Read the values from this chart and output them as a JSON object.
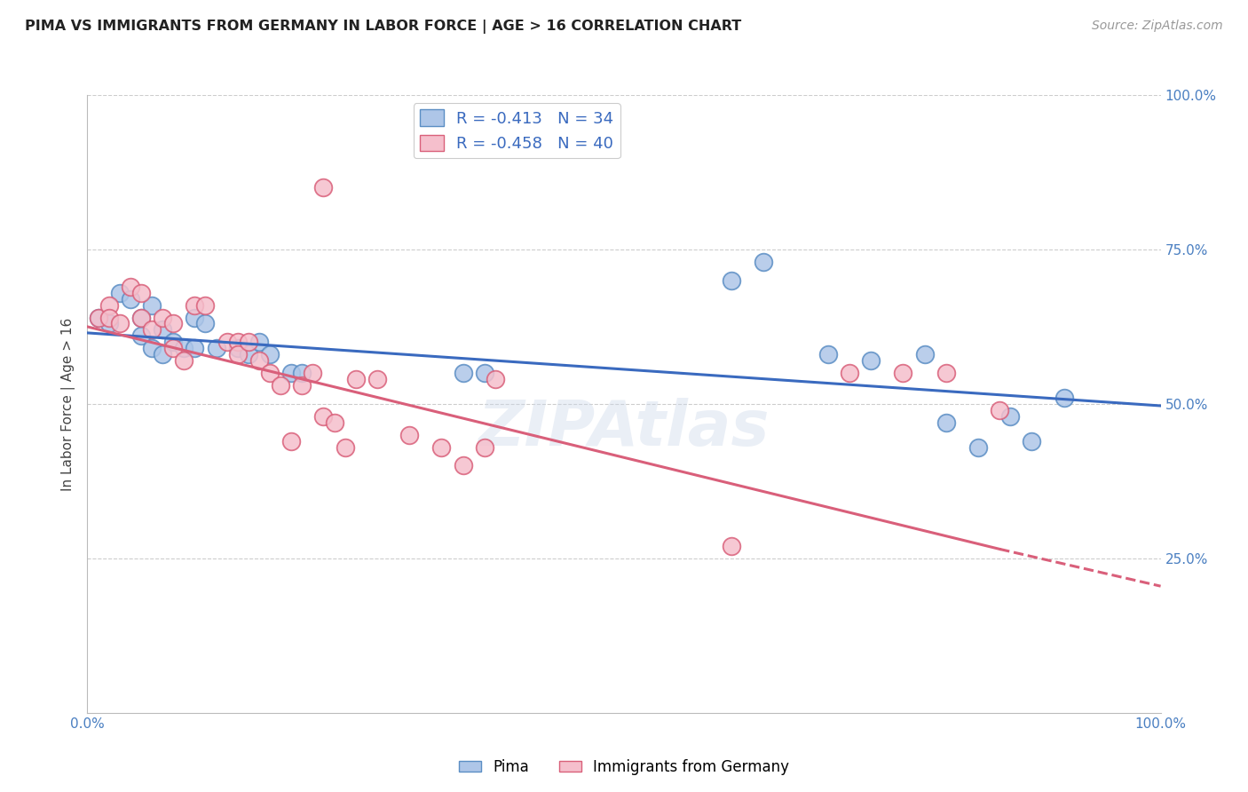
{
  "title": "PIMA VS IMMIGRANTS FROM GERMANY IN LABOR FORCE | AGE > 16 CORRELATION CHART",
  "source": "Source: ZipAtlas.com",
  "ylabel": "In Labor Force | Age > 16",
  "xlim": [
    0.0,
    1.0
  ],
  "ylim": [
    0.0,
    1.0
  ],
  "ytick_positions": [
    0.25,
    0.5,
    0.75,
    1.0
  ],
  "ytick_labels": [
    "25.0%",
    "50.0%",
    "75.0%",
    "100.0%"
  ],
  "legend_blue_r": "-0.413",
  "legend_blue_n": "34",
  "legend_pink_r": "-0.458",
  "legend_pink_n": "40",
  "pima_color": "#aec6e8",
  "germany_color": "#f5bfcc",
  "pima_edge_color": "#5b8ec4",
  "germany_edge_color": "#d9607a",
  "trendline_blue": "#3a6abf",
  "trendline_pink": "#d95f7a",
  "background_color": "#ffffff",
  "grid_color": "#c8c8c8",
  "pima_x": [
    0.01,
    0.02,
    0.03,
    0.04,
    0.05,
    0.05,
    0.06,
    0.06,
    0.07,
    0.07,
    0.08,
    0.09,
    0.1,
    0.1,
    0.11,
    0.12,
    0.14,
    0.15,
    0.16,
    0.17,
    0.19,
    0.2,
    0.35,
    0.37,
    0.6,
    0.63,
    0.69,
    0.73,
    0.78,
    0.8,
    0.83,
    0.86,
    0.88,
    0.91
  ],
  "pima_y": [
    0.64,
    0.63,
    0.68,
    0.67,
    0.64,
    0.61,
    0.66,
    0.59,
    0.62,
    0.58,
    0.6,
    0.59,
    0.64,
    0.59,
    0.63,
    0.59,
    0.59,
    0.58,
    0.6,
    0.58,
    0.55,
    0.55,
    0.55,
    0.55,
    0.7,
    0.73,
    0.58,
    0.57,
    0.58,
    0.47,
    0.43,
    0.48,
    0.44,
    0.51
  ],
  "germany_x": [
    0.01,
    0.02,
    0.02,
    0.03,
    0.04,
    0.05,
    0.05,
    0.06,
    0.07,
    0.08,
    0.08,
    0.09,
    0.1,
    0.11,
    0.13,
    0.14,
    0.14,
    0.15,
    0.16,
    0.17,
    0.18,
    0.19,
    0.2,
    0.21,
    0.22,
    0.23,
    0.24,
    0.25,
    0.27,
    0.3,
    0.33,
    0.35,
    0.37,
    0.38,
    0.6,
    0.71,
    0.76,
    0.8,
    0.85,
    0.22
  ],
  "germany_y": [
    0.64,
    0.66,
    0.64,
    0.63,
    0.69,
    0.68,
    0.64,
    0.62,
    0.64,
    0.63,
    0.59,
    0.57,
    0.66,
    0.66,
    0.6,
    0.6,
    0.58,
    0.6,
    0.57,
    0.55,
    0.53,
    0.44,
    0.53,
    0.55,
    0.48,
    0.47,
    0.43,
    0.54,
    0.54,
    0.45,
    0.43,
    0.4,
    0.43,
    0.54,
    0.27,
    0.55,
    0.55,
    0.55,
    0.49,
    0.85
  ],
  "trendline_blue_x0": 0.0,
  "trendline_blue_y0": 0.615,
  "trendline_blue_x1": 1.0,
  "trendline_blue_y1": 0.497,
  "trendline_pink_solid_x0": 0.0,
  "trendline_pink_solid_y0": 0.625,
  "trendline_pink_solid_x1": 0.85,
  "trendline_pink_solid_y1": 0.265,
  "trendline_pink_dash_x0": 0.85,
  "trendline_pink_dash_y0": 0.265,
  "trendline_pink_dash_x1": 1.0,
  "trendline_pink_dash_y1": 0.205
}
